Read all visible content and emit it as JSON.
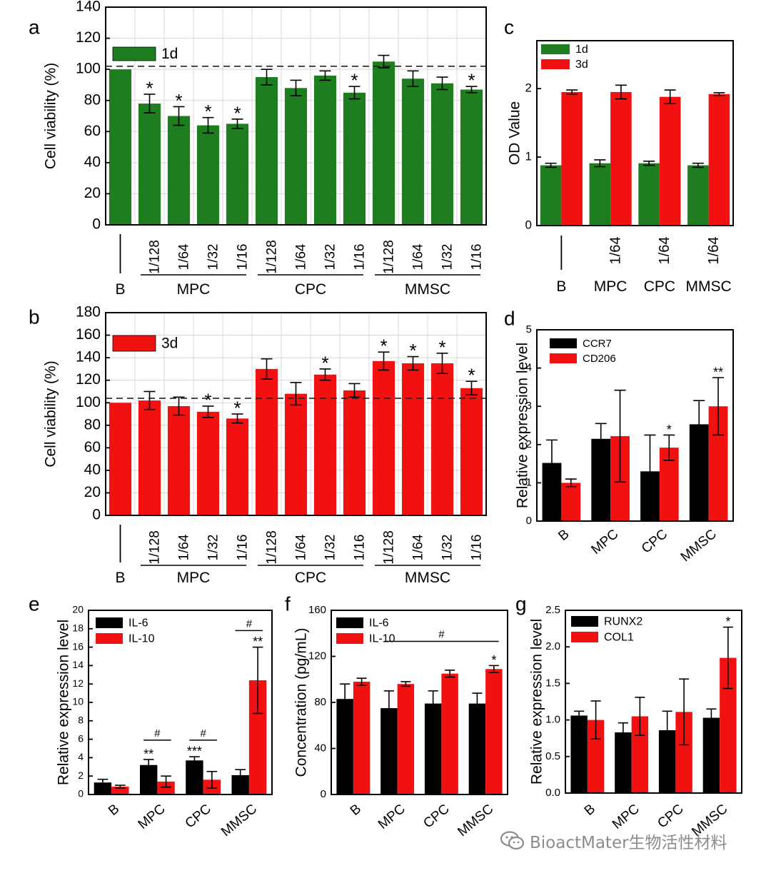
{
  "watermark": {
    "text": "BioactMater生物活性材料",
    "icon": "wechat-icon"
  },
  "colors": {
    "green": "#1e7d1e",
    "red": "#f21111",
    "black": "#000000"
  },
  "chart_data": [
    {
      "id": "a",
      "panel_label": "a",
      "type": "bar",
      "ylabel": "Cell viability (%)",
      "ylim": [
        0,
        140
      ],
      "yticks": [
        0,
        20,
        40,
        60,
        80,
        100,
        120,
        140
      ],
      "categories": [
        "",
        "1/128",
        "1/64",
        "1/32",
        "1/16",
        "1/128",
        "1/64",
        "1/32",
        "1/16",
        "1/128",
        "1/64",
        "1/32",
        "1/16"
      ],
      "groups": [
        {
          "label": "B",
          "start": 0,
          "end": 0
        },
        {
          "label": "MPC",
          "start": 1,
          "end": 4
        },
        {
          "label": "CPC",
          "start": 5,
          "end": 8
        },
        {
          "label": "MMSC",
          "start": 9,
          "end": 12
        }
      ],
      "series": [
        {
          "name": "1d",
          "color": "#1e7d1e",
          "values": [
            100,
            78,
            70,
            64,
            65,
            95,
            88,
            96,
            85,
            105,
            94,
            91,
            87
          ],
          "errors": [
            0,
            6,
            6,
            5,
            3,
            5,
            5,
            3,
            4,
            4,
            5,
            4,
            2
          ],
          "annotations": [
            "",
            "*",
            "*",
            "*",
            "*",
            "",
            "",
            "",
            "*",
            "",
            "",
            "",
            "*"
          ]
        }
      ],
      "reference_line": 102,
      "legend": "top-left"
    },
    {
      "id": "b",
      "panel_label": "b",
      "type": "bar",
      "ylabel": "Cell viability (%)",
      "ylim": [
        0,
        180
      ],
      "yticks": [
        0,
        20,
        40,
        60,
        80,
        100,
        120,
        140,
        160,
        180
      ],
      "categories": [
        "",
        "1/128",
        "1/64",
        "1/32",
        "1/16",
        "1/128",
        "1/64",
        "1/32",
        "1/16",
        "1/128",
        "1/64",
        "1/32",
        "1/16"
      ],
      "groups": [
        {
          "label": "B",
          "start": 0,
          "end": 0
        },
        {
          "label": "MPC",
          "start": 1,
          "end": 4
        },
        {
          "label": "CPC",
          "start": 5,
          "end": 8
        },
        {
          "label": "MMSC",
          "start": 9,
          "end": 12
        }
      ],
      "series": [
        {
          "name": "3d",
          "color": "#f21111",
          "values": [
            100,
            102,
            97,
            92,
            86,
            130,
            108,
            125,
            111,
            137,
            135,
            135,
            113
          ],
          "errors": [
            0,
            8,
            8,
            5,
            4,
            9,
            10,
            5,
            6,
            8,
            6,
            9,
            6
          ],
          "annotations": [
            "",
            "",
            "",
            "*",
            "*",
            "",
            "",
            "*",
            "",
            "*",
            "*",
            "*",
            "*"
          ]
        }
      ],
      "reference_line": 104,
      "legend": "top-left"
    },
    {
      "id": "c",
      "panel_label": "c",
      "type": "bar",
      "ylabel": "OD Value",
      "ylim": [
        0,
        2.7
      ],
      "yticks": [
        0,
        1,
        2
      ],
      "categories": [
        "",
        "1/64",
        "1/64",
        "1/64"
      ],
      "groups": [
        {
          "label": "B",
          "start": 0,
          "end": 0
        },
        {
          "label": "MPC",
          "start": 1,
          "end": 1
        },
        {
          "label": "CPC",
          "start": 2,
          "end": 2
        },
        {
          "label": "MMSC",
          "start": 3,
          "end": 3
        }
      ],
      "series": [
        {
          "name": "1d",
          "color": "#1e7d1e",
          "values": [
            0.88,
            0.91,
            0.91,
            0.88
          ],
          "errors": [
            0.03,
            0.05,
            0.03,
            0.03
          ]
        },
        {
          "name": "3d",
          "color": "#f21111",
          "values": [
            1.95,
            1.95,
            1.88,
            1.92
          ],
          "errors": [
            0.03,
            0.1,
            0.1,
            0.02
          ]
        }
      ],
      "legend": "top-left"
    },
    {
      "id": "d",
      "panel_label": "d",
      "type": "bar",
      "ylabel": "Relative expression level",
      "ylim": [
        0,
        5
      ],
      "yticks": [
        0,
        1,
        2,
        3,
        4,
        5
      ],
      "categories": [
        "B",
        "MPC",
        "CPC",
        "MMSC"
      ],
      "series": [
        {
          "name": "CCR7",
          "color": "#000000",
          "values": [
            1.52,
            2.15,
            1.3,
            2.53
          ],
          "errors": [
            0.6,
            0.4,
            0.95,
            0.62
          ]
        },
        {
          "name": "CD206",
          "color": "#f21111",
          "values": [
            1.0,
            2.22,
            1.92,
            3.0
          ],
          "errors": [
            0.1,
            1.2,
            0.33,
            0.75
          ],
          "annotations": [
            "",
            "",
            "*",
            "**"
          ]
        }
      ],
      "legend": "top-left"
    },
    {
      "id": "e",
      "panel_label": "e",
      "type": "bar",
      "ylabel": "Relative expression level",
      "ylim": [
        0,
        20
      ],
      "yticks": [
        0,
        2,
        4,
        6,
        8,
        10,
        12,
        14,
        16,
        18,
        20
      ],
      "categories": [
        "B",
        "MPC",
        "CPC",
        "MMSC"
      ],
      "series": [
        {
          "name": "IL-6",
          "color": "#000000",
          "values": [
            1.3,
            3.2,
            3.7,
            2.1
          ],
          "errors": [
            0.35,
            0.6,
            0.4,
            0.6
          ],
          "annotations": [
            "",
            "**",
            "***",
            ""
          ]
        },
        {
          "name": "IL-10",
          "color": "#f21111",
          "values": [
            0.85,
            1.4,
            1.6,
            12.4
          ],
          "errors": [
            0.15,
            0.6,
            0.9,
            3.6
          ],
          "annotations": [
            "",
            "",
            "",
            "**"
          ]
        }
      ],
      "brackets": [
        {
          "from": 1,
          "to": 1,
          "y": 5.9,
          "label": "#"
        },
        {
          "from": 2,
          "to": 2,
          "y": 5.9,
          "label": "#"
        },
        {
          "from": 3,
          "to": 3,
          "y": 17.8,
          "label": "#"
        }
      ],
      "legend": "top-left"
    },
    {
      "id": "f",
      "panel_label": "f",
      "type": "bar",
      "ylabel": "Concentration (pg/mL)",
      "ylim": [
        0,
        160
      ],
      "yticks": [
        0,
        40,
        80,
        120,
        160
      ],
      "categories": [
        "B",
        "MPC",
        "CPC",
        "MMSC"
      ],
      "series": [
        {
          "name": "IL-6",
          "color": "#000000",
          "values": [
            83,
            75,
            79,
            79
          ],
          "errors": [
            13,
            15,
            11,
            9
          ]
        },
        {
          "name": "IL-10",
          "color": "#f21111",
          "values": [
            98,
            96,
            105,
            109
          ],
          "errors": [
            3,
            2,
            3,
            3
          ],
          "annotations": [
            "",
            "",
            "",
            "*"
          ]
        }
      ],
      "brackets": [
        {
          "from": 1,
          "to": 3,
          "y": 133,
          "label": "#"
        }
      ],
      "legend": "top-left"
    },
    {
      "id": "g",
      "panel_label": "g",
      "type": "bar",
      "ylabel": "Relative expression level",
      "ylim": [
        0,
        2.5
      ],
      "yticks": [
        0,
        0.5,
        1.0,
        1.5,
        2.0,
        2.5
      ],
      "ytick_labels": [
        "0.0",
        "0.5",
        "1.0",
        "1.5",
        "2.0",
        "2.5"
      ],
      "categories": [
        "B",
        "MPC",
        "CPC",
        "MMSC"
      ],
      "series": [
        {
          "name": "RUNX2",
          "color": "#000000",
          "values": [
            1.06,
            0.83,
            0.86,
            1.03
          ],
          "errors": [
            0.06,
            0.13,
            0.26,
            0.12
          ]
        },
        {
          "name": "COL1",
          "color": "#f21111",
          "values": [
            1.0,
            1.05,
            1.11,
            1.85
          ],
          "errors": [
            0.26,
            0.26,
            0.45,
            0.42
          ],
          "annotations": [
            "",
            "",
            "",
            "*"
          ]
        }
      ],
      "legend": "top-left"
    }
  ]
}
